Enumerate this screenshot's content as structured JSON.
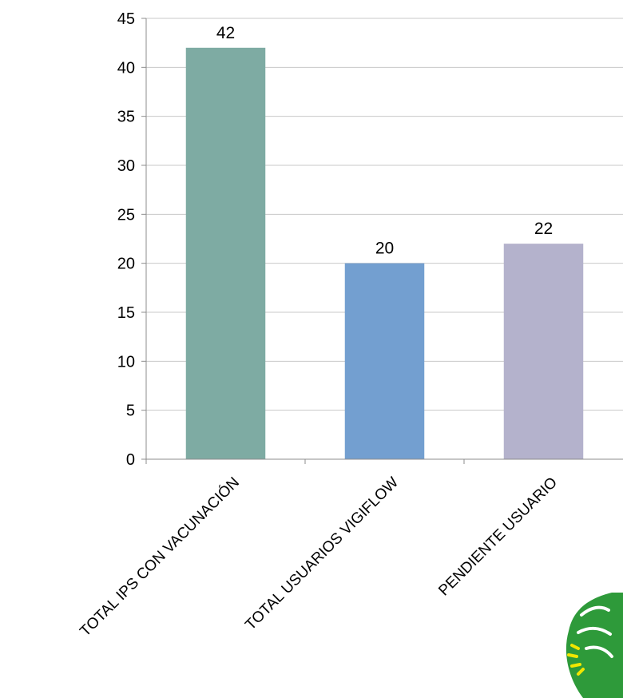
{
  "chart_data": {
    "type": "bar",
    "categories": [
      "TOTAL IPS CON VACUNACIÓN",
      "TOTAL USUARIOS VIGIFLOW",
      "PENDIENTE USUARIO"
    ],
    "values": [
      42,
      20,
      22
    ],
    "data_labels": [
      "42",
      "20",
      "22"
    ],
    "colors": [
      "#7eaba3",
      "#739fd0",
      "#b4b2cc"
    ],
    "ylim": [
      0,
      45
    ],
    "yticks": [
      "0",
      "5",
      "10",
      "15",
      "20",
      "25",
      "30",
      "35",
      "40",
      "45"
    ],
    "grid": true,
    "gridline_color": "#c8c8c8",
    "xtick_rotation": "-45deg"
  },
  "logo": {
    "icon": "green-leaf-logo-icon",
    "colors": [
      "#2e9a3a",
      "#f2e600"
    ]
  }
}
